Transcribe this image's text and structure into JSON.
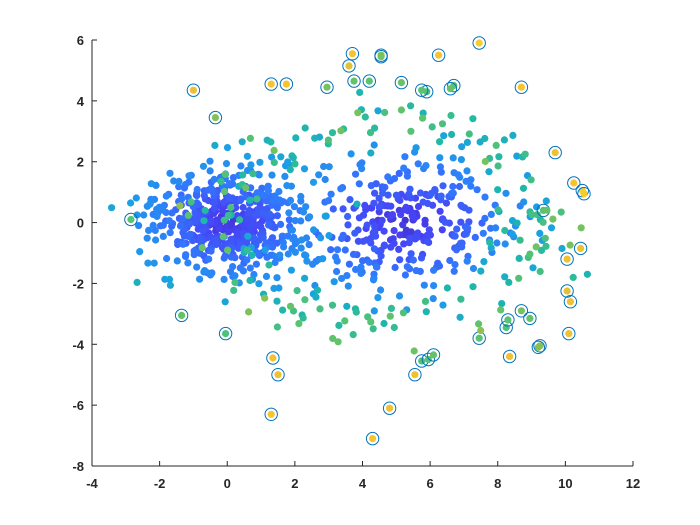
{
  "chart_data": {
    "type": "scatter",
    "title": "",
    "xlabel": "",
    "ylabel": "",
    "xlim": [
      -4,
      12
    ],
    "ylim": [
      -8,
      6
    ],
    "grid": false,
    "legend": "none",
    "x_ticks": [
      "-4",
      "-2",
      "0",
      "2",
      "4",
      "6",
      "8",
      "10",
      "12"
    ],
    "y_ticks": [
      "-8",
      "-6",
      "-4",
      "-2",
      "0",
      "2",
      "4",
      "6"
    ],
    "colormap": "parula",
    "colormap_stops": [
      "#3e26a8",
      "#4742f5",
      "#3278fe",
      "#1ba1e2",
      "#1fb8a8",
      "#5ac36f",
      "#b9be3d",
      "#f5c22f",
      "#f9fb15"
    ],
    "outlier_ring_color": "#0072bd",
    "clusters": [
      {
        "name": "",
        "cx": 0,
        "cy": 0,
        "sx": 1.15,
        "sy": 0.85,
        "n": 520,
        "seed": 11
      },
      {
        "name": "",
        "cx": 5.2,
        "cy": 0,
        "sx": 1.6,
        "sy": 1.05,
        "n": 330,
        "seed": 23
      }
    ],
    "ring": {
      "cx": 4.6,
      "cy": 0,
      "rx": 4.9,
      "ry": 3.6,
      "jitter": 0.35,
      "n": 160,
      "seed": 37
    },
    "outliers": [
      {
        "x": -2.85,
        "y": 0.1,
        "c": 0.62
      },
      {
        "x": -1.0,
        "y": 4.35,
        "c": 0.85
      },
      {
        "x": -0.35,
        "y": 3.45,
        "c": 0.68
      },
      {
        "x": -1.35,
        "y": -3.05,
        "c": 0.64
      },
      {
        "x": -0.05,
        "y": -3.65,
        "c": 0.6
      },
      {
        "x": 1.3,
        "y": 4.55,
        "c": 0.88
      },
      {
        "x": 1.75,
        "y": 4.55,
        "c": 0.88
      },
      {
        "x": 2.95,
        "y": 4.45,
        "c": 0.66
      },
      {
        "x": 3.6,
        "y": 5.15,
        "c": 0.84
      },
      {
        "x": 3.7,
        "y": 5.55,
        "c": 0.88
      },
      {
        "x": 3.75,
        "y": 4.65,
        "c": 0.64
      },
      {
        "x": 4.2,
        "y": 4.65,
        "c": 0.62
      },
      {
        "x": 4.55,
        "y": 5.5,
        "c": 0.66
      },
      {
        "x": 4.55,
        "y": 5.45,
        "c": 0.66
      },
      {
        "x": 5.15,
        "y": 4.6,
        "c": 0.64
      },
      {
        "x": 5.75,
        "y": 4.35,
        "c": 0.62
      },
      {
        "x": 5.9,
        "y": 4.3,
        "c": 0.6
      },
      {
        "x": 6.25,
        "y": 5.5,
        "c": 0.88
      },
      {
        "x": 6.6,
        "y": 4.4,
        "c": 0.64
      },
      {
        "x": 6.7,
        "y": 4.5,
        "c": 0.62
      },
      {
        "x": 7.45,
        "y": 5.9,
        "c": 0.9
      },
      {
        "x": 8.7,
        "y": 4.45,
        "c": 0.88
      },
      {
        "x": 9.7,
        "y": 2.3,
        "c": 0.86
      },
      {
        "x": 10.25,
        "y": 1.3,
        "c": 0.88
      },
      {
        "x": 10.5,
        "y": 1.05,
        "c": 0.9
      },
      {
        "x": 10.55,
        "y": 0.95,
        "c": 0.9
      },
      {
        "x": 9.35,
        "y": 0.4,
        "c": 0.62
      },
      {
        "x": 10.45,
        "y": -0.85,
        "c": 0.86
      },
      {
        "x": 10.05,
        "y": -1.2,
        "c": 0.86
      },
      {
        "x": 10.05,
        "y": -2.25,
        "c": 0.84
      },
      {
        "x": 10.15,
        "y": -2.6,
        "c": 0.86
      },
      {
        "x": 8.7,
        "y": -2.9,
        "c": 0.66
      },
      {
        "x": 8.95,
        "y": -3.15,
        "c": 0.64
      },
      {
        "x": 8.3,
        "y": -3.2,
        "c": 0.62
      },
      {
        "x": 8.25,
        "y": -3.45,
        "c": 0.6
      },
      {
        "x": 7.45,
        "y": -3.8,
        "c": 0.62
      },
      {
        "x": 9.25,
        "y": -4.05,
        "c": 0.68
      },
      {
        "x": 9.2,
        "y": -4.1,
        "c": 0.68
      },
      {
        "x": 10.1,
        "y": -3.65,
        "c": 0.86
      },
      {
        "x": 8.35,
        "y": -4.4,
        "c": 0.86
      },
      {
        "x": 6.1,
        "y": -4.35,
        "c": 0.64
      },
      {
        "x": 5.95,
        "y": -4.5,
        "c": 0.62
      },
      {
        "x": 5.75,
        "y": -4.55,
        "c": 0.6
      },
      {
        "x": 5.55,
        "y": -5.0,
        "c": 0.86
      },
      {
        "x": 4.8,
        "y": -6.1,
        "c": 0.86
      },
      {
        "x": 4.3,
        "y": -7.1,
        "c": 0.88
      },
      {
        "x": 1.35,
        "y": -4.45,
        "c": 0.86
      },
      {
        "x": 1.5,
        "y": -5.0,
        "c": 0.86
      },
      {
        "x": 1.3,
        "y": -6.3,
        "c": 0.88
      }
    ]
  }
}
